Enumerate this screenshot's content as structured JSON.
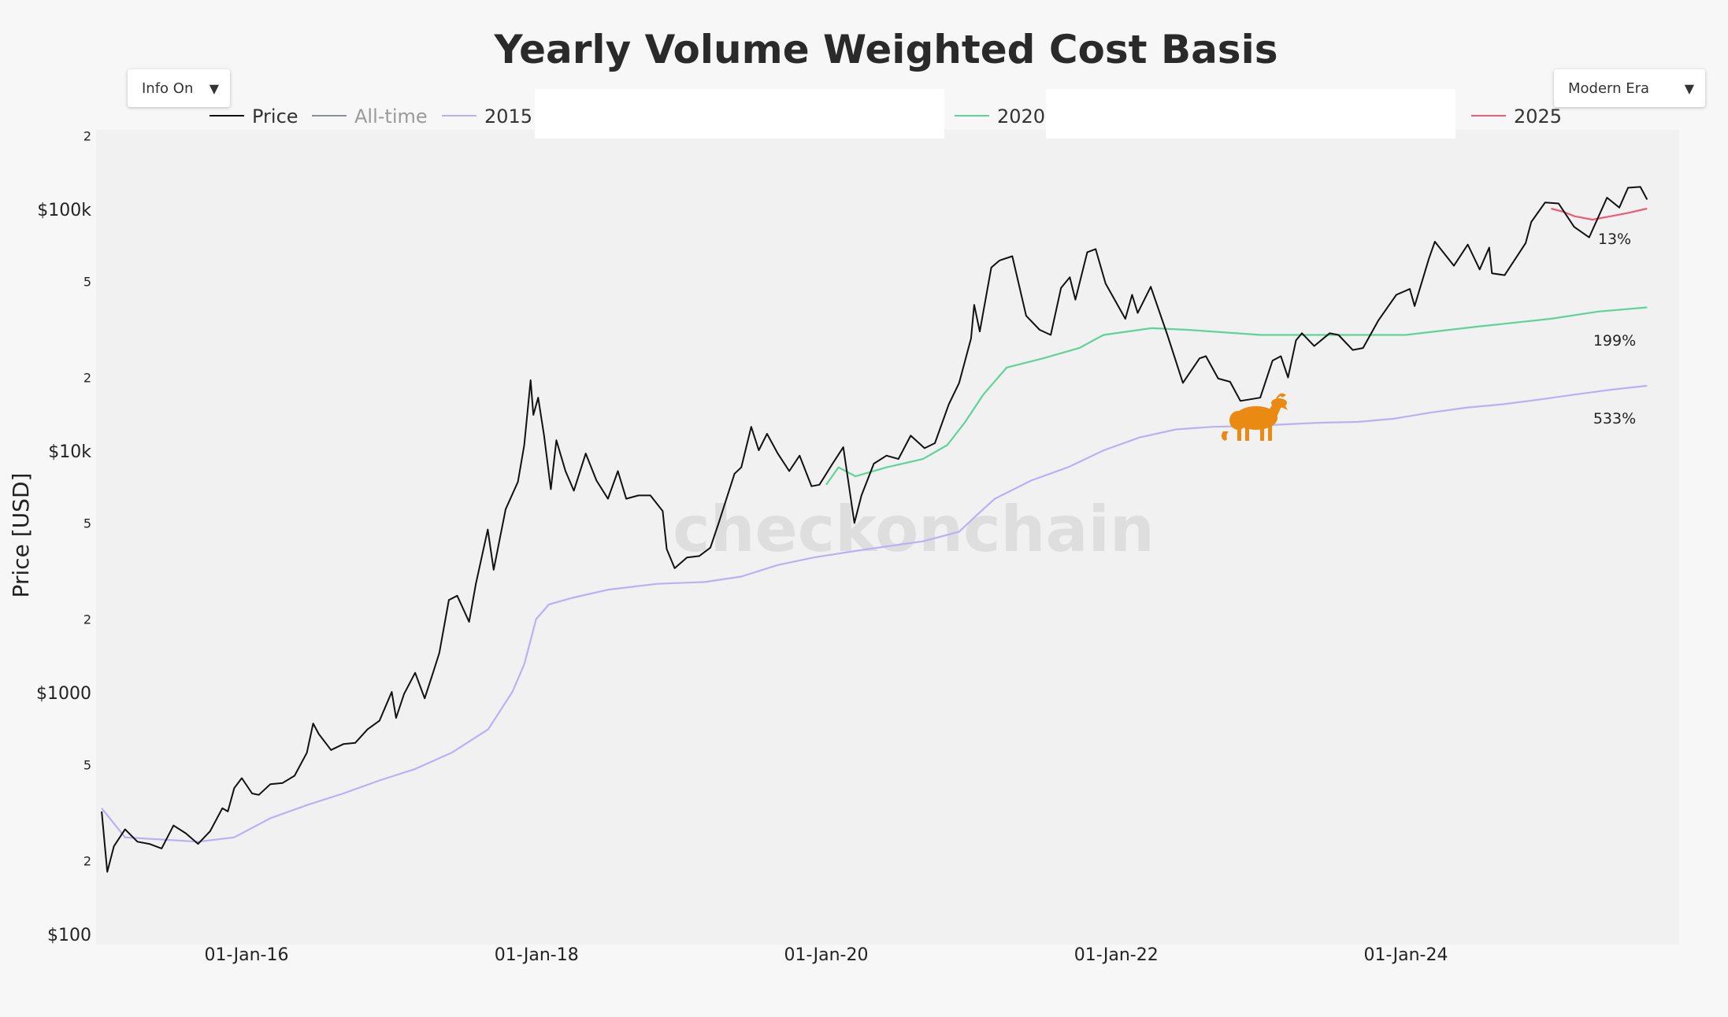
{
  "chart_data": {
    "type": "line",
    "title": "Yearly Volume Weighted Cost Basis",
    "ylabel": "Price [USD]",
    "xlabel": "",
    "yscale": "log",
    "ylim": [
      100,
      200000
    ],
    "xlim": [
      "2015-01-01",
      "2025-08-31"
    ],
    "x_ticks": [
      "01-Jan-16",
      "01-Jan-18",
      "01-Jan-20",
      "01-Jan-22",
      "01-Jan-24"
    ],
    "y_ticks": [
      "$100",
      "2",
      "5",
      "$1000",
      "2",
      "5",
      "$10k",
      "2",
      "5",
      "$100k",
      "2"
    ],
    "legend": [
      {
        "name": "Price",
        "color": "#111111"
      },
      {
        "name": "All-time",
        "color": "#8a8f98"
      },
      {
        "name": "2015",
        "color": "#b9b1f5"
      },
      {
        "name": "2020",
        "color": "#5ed39a"
      },
      {
        "name": "2025",
        "color": "#ee5a79"
      }
    ],
    "series": [
      {
        "name": "Price",
        "color": "#111111",
        "points": [
          [
            "2015-01-01",
            320
          ],
          [
            "2015-01-15",
            180
          ],
          [
            "2015-02-01",
            230
          ],
          [
            "2015-03-01",
            270
          ],
          [
            "2015-04-01",
            240
          ],
          [
            "2015-05-01",
            235
          ],
          [
            "2015-06-01",
            225
          ],
          [
            "2015-07-01",
            280
          ],
          [
            "2015-08-01",
            260
          ],
          [
            "2015-09-01",
            235
          ],
          [
            "2015-10-01",
            265
          ],
          [
            "2015-11-01",
            330
          ],
          [
            "2015-11-15",
            320
          ],
          [
            "2015-12-01",
            400
          ],
          [
            "2015-12-20",
            440
          ],
          [
            "2016-01-15",
            380
          ],
          [
            "2016-02-01",
            375
          ],
          [
            "2016-03-01",
            415
          ],
          [
            "2016-04-01",
            420
          ],
          [
            "2016-05-01",
            450
          ],
          [
            "2016-06-01",
            560
          ],
          [
            "2016-06-17",
            740
          ],
          [
            "2016-07-01",
            670
          ],
          [
            "2016-08-01",
            575
          ],
          [
            "2016-09-01",
            608
          ],
          [
            "2016-10-01",
            615
          ],
          [
            "2016-11-01",
            700
          ],
          [
            "2016-12-01",
            760
          ],
          [
            "2017-01-01",
            1000
          ],
          [
            "2017-01-12",
            780
          ],
          [
            "2017-02-01",
            980
          ],
          [
            "2017-03-01",
            1200
          ],
          [
            "2017-03-25",
            940
          ],
          [
            "2017-04-15",
            1200
          ],
          [
            "2017-05-01",
            1450
          ],
          [
            "2017-05-25",
            2400
          ],
          [
            "2017-06-15",
            2500
          ],
          [
            "2017-07-15",
            1950
          ],
          [
            "2017-08-01",
            2800
          ],
          [
            "2017-08-31",
            4700
          ],
          [
            "2017-09-15",
            3200
          ],
          [
            "2017-10-15",
            5700
          ],
          [
            "2017-11-15",
            7400
          ],
          [
            "2017-12-01",
            10500
          ],
          [
            "2017-12-17",
            19500
          ],
          [
            "2017-12-24",
            14000
          ],
          [
            "2018-01-05",
            16500
          ],
          [
            "2018-01-20",
            11500
          ],
          [
            "2018-02-06",
            6900
          ],
          [
            "2018-02-20",
            11000
          ],
          [
            "2018-03-15",
            8200
          ],
          [
            "2018-04-05",
            6800
          ],
          [
            "2018-05-05",
            9700
          ],
          [
            "2018-06-01",
            7500
          ],
          [
            "2018-06-30",
            6300
          ],
          [
            "2018-07-25",
            8200
          ],
          [
            "2018-08-15",
            6300
          ],
          [
            "2018-09-15",
            6500
          ],
          [
            "2018-10-15",
            6500
          ],
          [
            "2018-11-15",
            5600
          ],
          [
            "2018-11-25",
            3900
          ],
          [
            "2018-12-15",
            3250
          ],
          [
            "2019-01-15",
            3600
          ],
          [
            "2019-02-15",
            3650
          ],
          [
            "2019-03-15",
            3950
          ],
          [
            "2019-04-05",
            5000
          ],
          [
            "2019-05-15",
            8000
          ],
          [
            "2019-06-01",
            8500
          ],
          [
            "2019-06-26",
            12500
          ],
          [
            "2019-07-15",
            10000
          ],
          [
            "2019-08-05",
            11700
          ],
          [
            "2019-09-01",
            9700
          ],
          [
            "2019-09-30",
            8200
          ],
          [
            "2019-10-26",
            9500
          ],
          [
            "2019-11-25",
            7100
          ],
          [
            "2019-12-15",
            7200
          ],
          [
            "2020-01-15",
            8700
          ],
          [
            "2020-02-13",
            10300
          ],
          [
            "2020-03-12",
            5000
          ],
          [
            "2020-03-30",
            6500
          ],
          [
            "2020-04-30",
            8800
          ],
          [
            "2020-06-01",
            9500
          ],
          [
            "2020-07-01",
            9200
          ],
          [
            "2020-08-01",
            11500
          ],
          [
            "2020-09-05",
            10200
          ],
          [
            "2020-10-01",
            10700
          ],
          [
            "2020-11-05",
            15500
          ],
          [
            "2020-12-01",
            19000
          ],
          [
            "2020-12-31",
            29000
          ],
          [
            "2021-01-08",
            40000
          ],
          [
            "2021-01-22",
            31000
          ],
          [
            "2021-02-20",
            57000
          ],
          [
            "2021-03-13",
            61000
          ],
          [
            "2021-04-14",
            63500
          ],
          [
            "2021-05-19",
            36000
          ],
          [
            "2021-06-22",
            31500
          ],
          [
            "2021-07-20",
            30000
          ],
          [
            "2021-08-15",
            47000
          ],
          [
            "2021-09-06",
            52000
          ],
          [
            "2021-09-20",
            42000
          ],
          [
            "2021-10-20",
            66000
          ],
          [
            "2021-11-10",
            68000
          ],
          [
            "2021-12-05",
            49000
          ],
          [
            "2022-01-24",
            35000
          ],
          [
            "2022-02-10",
            44000
          ],
          [
            "2022-02-24",
            37000
          ],
          [
            "2022-03-29",
            47500
          ],
          [
            "2022-05-10",
            30000
          ],
          [
            "2022-06-18",
            19000
          ],
          [
            "2022-07-30",
            24000
          ],
          [
            "2022-08-15",
            24500
          ],
          [
            "2022-09-15",
            19800
          ],
          [
            "2022-10-15",
            19200
          ],
          [
            "2022-11-10",
            16000
          ],
          [
            "2022-12-30",
            16500
          ],
          [
            "2023-01-30",
            23500
          ],
          [
            "2023-02-20",
            24500
          ],
          [
            "2023-03-10",
            20000
          ],
          [
            "2023-03-30",
            28500
          ],
          [
            "2023-04-14",
            30500
          ],
          [
            "2023-05-15",
            27000
          ],
          [
            "2023-06-23",
            30500
          ],
          [
            "2023-07-15",
            30000
          ],
          [
            "2023-08-20",
            26000
          ],
          [
            "2023-09-15",
            26500
          ],
          [
            "2023-10-24",
            34500
          ],
          [
            "2023-12-08",
            44000
          ],
          [
            "2024-01-11",
            46500
          ],
          [
            "2024-01-23",
            39500
          ],
          [
            "2024-02-28",
            62000
          ],
          [
            "2024-03-14",
            73000
          ],
          [
            "2024-05-01",
            58000
          ],
          [
            "2024-06-05",
            71000
          ],
          [
            "2024-07-05",
            56000
          ],
          [
            "2024-07-29",
            69000
          ],
          [
            "2024-08-05",
            54000
          ],
          [
            "2024-09-06",
            53000
          ],
          [
            "2024-10-29",
            72000
          ],
          [
            "2024-11-12",
            88000
          ],
          [
            "2024-12-17",
            106000
          ],
          [
            "2025-01-20",
            105000
          ],
          [
            "2025-02-28",
            84000
          ],
          [
            "2025-04-07",
            76000
          ],
          [
            "2025-05-22",
            111000
          ],
          [
            "2025-06-22",
            101000
          ],
          [
            "2025-07-14",
            122000
          ],
          [
            "2025-08-14",
            123000
          ],
          [
            "2025-08-31",
            109000
          ]
        ]
      },
      {
        "name": "2015",
        "color": "#b9b1f5",
        "points": [
          [
            "2015-01-01",
            330
          ],
          [
            "2015-03-01",
            250
          ],
          [
            "2015-06-01",
            245
          ],
          [
            "2015-09-01",
            240
          ],
          [
            "2015-12-01",
            250
          ],
          [
            "2016-03-01",
            300
          ],
          [
            "2016-06-01",
            340
          ],
          [
            "2016-09-01",
            380
          ],
          [
            "2016-12-01",
            430
          ],
          [
            "2017-03-01",
            480
          ],
          [
            "2017-06-01",
            560
          ],
          [
            "2017-09-01",
            700
          ],
          [
            "2017-11-01",
            1000
          ],
          [
            "2017-12-01",
            1300
          ],
          [
            "2017-12-31",
            2000
          ],
          [
            "2018-02-01",
            2300
          ],
          [
            "2018-04-01",
            2450
          ],
          [
            "2018-07-01",
            2650
          ],
          [
            "2018-11-01",
            2800
          ],
          [
            "2019-03-01",
            2850
          ],
          [
            "2019-06-01",
            3000
          ],
          [
            "2019-09-01",
            3350
          ],
          [
            "2019-12-01",
            3600
          ],
          [
            "2020-03-01",
            3800
          ],
          [
            "2020-06-01",
            4000
          ],
          [
            "2020-09-01",
            4200
          ],
          [
            "2020-12-01",
            4600
          ],
          [
            "2021-01-15",
            5400
          ],
          [
            "2021-03-01",
            6300
          ],
          [
            "2021-06-01",
            7500
          ],
          [
            "2021-09-01",
            8500
          ],
          [
            "2021-12-01",
            10000
          ],
          [
            "2022-03-01",
            11300
          ],
          [
            "2022-06-01",
            12200
          ],
          [
            "2022-09-01",
            12500
          ],
          [
            "2022-12-01",
            12600
          ],
          [
            "2023-03-01",
            12800
          ],
          [
            "2023-06-01",
            13000
          ],
          [
            "2023-09-01",
            13100
          ],
          [
            "2023-12-01",
            13500
          ],
          [
            "2024-03-01",
            14300
          ],
          [
            "2024-06-01",
            15000
          ],
          [
            "2024-09-01",
            15500
          ],
          [
            "2024-12-01",
            16200
          ],
          [
            "2025-03-01",
            17000
          ],
          [
            "2025-06-01",
            17800
          ],
          [
            "2025-08-31",
            18500
          ]
        ]
      },
      {
        "name": "2020",
        "color": "#5ed39a",
        "points": [
          [
            "2020-01-01",
            7200
          ],
          [
            "2020-02-01",
            8500
          ],
          [
            "2020-03-15",
            7800
          ],
          [
            "2020-06-01",
            8500
          ],
          [
            "2020-09-01",
            9200
          ],
          [
            "2020-11-01",
            10500
          ],
          [
            "2020-12-15",
            13000
          ],
          [
            "2021-01-31",
            17000
          ],
          [
            "2021-03-31",
            22000
          ],
          [
            "2021-06-30",
            24000
          ],
          [
            "2021-09-30",
            26500
          ],
          [
            "2021-11-30",
            30000
          ],
          [
            "2022-03-31",
            32000
          ],
          [
            "2022-06-30",
            31500
          ],
          [
            "2022-12-31",
            30000
          ],
          [
            "2023-06-30",
            30000
          ],
          [
            "2023-12-31",
            30000
          ],
          [
            "2024-06-30",
            32500
          ],
          [
            "2024-12-31",
            35000
          ],
          [
            "2025-04-30",
            37500
          ],
          [
            "2025-08-31",
            39000
          ]
        ]
      },
      {
        "name": "2025",
        "color": "#ee5a79",
        "points": [
          [
            "2025-01-01",
            100000
          ],
          [
            "2025-02-01",
            97000
          ],
          [
            "2025-03-01",
            93000
          ],
          [
            "2025-04-15",
            90000
          ],
          [
            "2025-06-01",
            93000
          ],
          [
            "2025-07-15",
            96000
          ],
          [
            "2025-08-31",
            100000
          ]
        ]
      }
    ],
    "annotations": [
      {
        "text": "13%",
        "series": "2025"
      },
      {
        "text": "199%",
        "series": "2020"
      },
      {
        "text": "533%",
        "series": "2015"
      }
    ]
  },
  "controls": {
    "info_toggle": "Info On",
    "era_select": "Modern Era"
  },
  "watermark": "checkonchain",
  "colors": {
    "background": "#f7f7f7",
    "plot_bg": "#f1f1f1",
    "goat": "#ea8a12"
  }
}
